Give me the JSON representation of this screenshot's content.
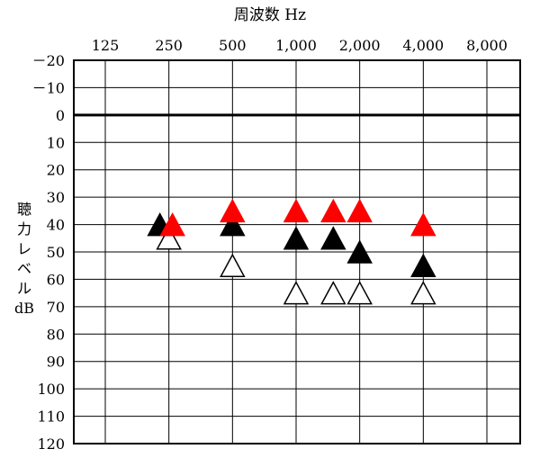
{
  "chart_data": {
    "type": "scatter",
    "title": "",
    "xlabel": "周波数 Hz",
    "ylabel": [
      "聴",
      "力",
      "レ",
      "ベ",
      "ル",
      "dB"
    ],
    "x_tick_labels": [
      "125",
      "250",
      "500",
      "1,000",
      "2,000",
      "4,000",
      "8,000"
    ],
    "x_tick_freqs": [
      125,
      250,
      500,
      1000,
      2000,
      4000,
      8000
    ],
    "y_tick_labels": [
      "－20",
      "－10",
      "0",
      "10",
      "20",
      "30",
      "40",
      "50",
      "60",
      "70",
      "80",
      "90",
      "100",
      "110",
      "120"
    ],
    "ylim": [
      -20,
      120
    ],
    "y_inverted": true,
    "reference_line_db": 0,
    "grid": true,
    "series": [
      {
        "marker": "filled-triangle",
        "color": "#000000",
        "points": [
          {
            "x": 250,
            "y": 40
          },
          {
            "x": 500,
            "y": 40
          },
          {
            "x": 1000,
            "y": 45
          },
          {
            "x": 1500,
            "y": 45
          },
          {
            "x": 2000,
            "y": 50
          },
          {
            "x": 4000,
            "y": 55
          }
        ]
      },
      {
        "marker": "filled-triangle",
        "color": "#ff0000",
        "points": [
          {
            "x": 250,
            "y": 40
          },
          {
            "x": 500,
            "y": 35
          },
          {
            "x": 1000,
            "y": 35
          },
          {
            "x": 1500,
            "y": 35
          },
          {
            "x": 2000,
            "y": 35
          },
          {
            "x": 4000,
            "y": 40
          }
        ]
      },
      {
        "marker": "open-triangle",
        "color": "#000000",
        "points": [
          {
            "x": 250,
            "y": 45
          },
          {
            "x": 500,
            "y": 55
          },
          {
            "x": 1000,
            "y": 65
          },
          {
            "x": 1500,
            "y": 65
          },
          {
            "x": 2000,
            "y": 65
          },
          {
            "x": 4000,
            "y": 65
          }
        ]
      }
    ]
  }
}
